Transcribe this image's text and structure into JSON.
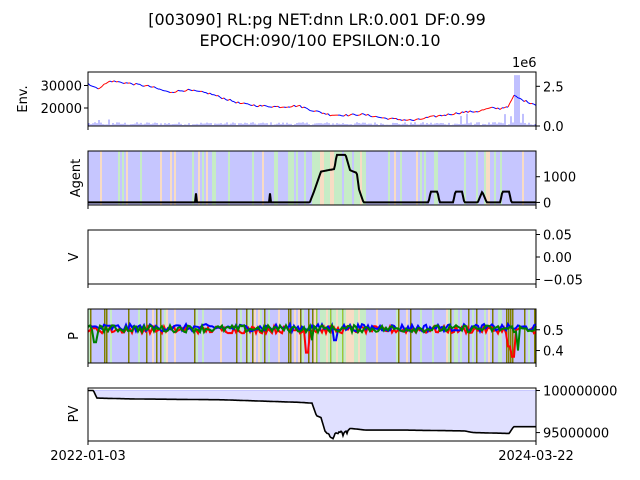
{
  "title_line1": "[003090] RL:pg NET:dnn LR:0.001 DF:0.99",
  "title_line2": "EPOCH:090/100 EPSILON:0.10",
  "x_axis": {
    "start_label": "2022-01-03",
    "end_label": "2024-03-22"
  },
  "colors": {
    "price_up": "#ff0000",
    "price_down": "#0000ff",
    "volume": "#8080ff",
    "buy_band": "#b3b3ff",
    "sell_band": "#b3e6b3",
    "hold_band": "#f5d0b0",
    "agent_line": "#000000",
    "p_buy": "#0000ff",
    "p_sell": "#ff0000",
    "p_hold": "#008000",
    "pv_fill": "#e0e0ff",
    "pv_line": "#000000",
    "olive": "#808000",
    "yellowgreen": "#9acd32"
  },
  "chart_data": [
    {
      "type": "line",
      "name": "env",
      "ylabel": "Env.",
      "ylim_left": [
        12000,
        36000
      ],
      "left_ticks": [
        "20000",
        "30000"
      ],
      "ylim_right": [
        0,
        3400000
      ],
      "right_ticks": [
        "0.0",
        "2.5"
      ],
      "right_offset": "1e6",
      "price_keypoints": [
        [
          0,
          31000
        ],
        [
          0.02,
          28500
        ],
        [
          0.05,
          32000
        ],
        [
          0.09,
          31000
        ],
        [
          0.14,
          29500
        ],
        [
          0.18,
          27000
        ],
        [
          0.22,
          28000
        ],
        [
          0.27,
          26500
        ],
        [
          0.3,
          24500
        ],
        [
          0.34,
          22000
        ],
        [
          0.38,
          21000
        ],
        [
          0.43,
          20500
        ],
        [
          0.47,
          21000
        ],
        [
          0.5,
          19000
        ],
        [
          0.54,
          17000
        ],
        [
          0.58,
          16800
        ],
        [
          0.61,
          17200
        ],
        [
          0.63,
          16600
        ],
        [
          0.66,
          15500
        ],
        [
          0.7,
          14800
        ],
        [
          0.73,
          14500
        ],
        [
          0.76,
          15800
        ],
        [
          0.8,
          17000
        ],
        [
          0.84,
          18200
        ],
        [
          0.87,
          18500
        ],
        [
          0.9,
          20000
        ],
        [
          0.92,
          19700
        ],
        [
          0.94,
          21000
        ],
        [
          0.95,
          25500
        ],
        [
          0.97,
          23500
        ],
        [
          1,
          21500
        ]
      ],
      "volume_note": "volume bars near zero with spikes reaching about 3.2e6 near the end"
    },
    {
      "type": "line",
      "name": "agent",
      "ylabel": "Agent",
      "ylim": [
        -100,
        2000
      ],
      "ticks": [
        "0",
        "1000"
      ],
      "keypoints": [
        [
          0,
          0
        ],
        [
          0.495,
          0
        ],
        [
          0.505,
          450
        ],
        [
          0.52,
          1200
        ],
        [
          0.55,
          1300
        ],
        [
          0.555,
          1850
        ],
        [
          0.575,
          1850
        ],
        [
          0.585,
          1250
        ],
        [
          0.6,
          1150
        ],
        [
          0.605,
          500
        ],
        [
          0.615,
          0
        ],
        [
          0.66,
          0
        ],
        [
          0.67,
          0
        ],
        [
          0.76,
          0
        ],
        [
          0.765,
          420
        ],
        [
          0.78,
          420
        ],
        [
          0.785,
          0
        ],
        [
          0.815,
          0
        ],
        [
          0.82,
          420
        ],
        [
          0.835,
          420
        ],
        [
          0.84,
          0
        ],
        [
          0.87,
          0
        ],
        [
          0.88,
          420
        ],
        [
          0.89,
          0
        ],
        [
          0.92,
          0
        ],
        [
          0.925,
          420
        ],
        [
          0.94,
          420
        ],
        [
          0.945,
          0
        ],
        [
          1,
          0
        ]
      ]
    },
    {
      "type": "line",
      "name": "value",
      "ylabel": "V",
      "ylim": [
        -0.06,
        0.06
      ],
      "ticks": [
        "0.05",
        "0.00",
        "−0.05"
      ]
    },
    {
      "type": "line",
      "name": "probabilities",
      "ylabel": "P",
      "ylim": [
        0.34,
        0.6
      ],
      "ticks": [
        "0.5",
        "0.4"
      ],
      "series": [
        {
          "role": "buy",
          "base": 0.51
        },
        {
          "role": "sell",
          "base": 0.5
        },
        {
          "role": "hold",
          "base": 0.505
        }
      ]
    },
    {
      "type": "area",
      "name": "portfolio-value",
      "ylabel": "PV",
      "ylim": [
        94000000,
        100300000
      ],
      "ticks": [
        "100000000",
        "95000000"
      ],
      "keypoints": [
        [
          0,
          100000000
        ],
        [
          0.012,
          100000000
        ],
        [
          0.02,
          99100000
        ],
        [
          0.1,
          99000000
        ],
        [
          0.3,
          98900000
        ],
        [
          0.47,
          98600000
        ],
        [
          0.5,
          98500000
        ],
        [
          0.51,
          97000000
        ],
        [
          0.52,
          96800000
        ],
        [
          0.53,
          95000000
        ],
        [
          0.545,
          94300000
        ],
        [
          0.56,
          95200000
        ],
        [
          0.57,
          94700000
        ],
        [
          0.585,
          95500000
        ],
        [
          0.62,
          95300000
        ],
        [
          0.7,
          95300000
        ],
        [
          0.84,
          95200000
        ],
        [
          0.86,
          95000000
        ],
        [
          0.94,
          94900000
        ],
        [
          0.95,
          95700000
        ],
        [
          1,
          95700000
        ]
      ]
    }
  ]
}
